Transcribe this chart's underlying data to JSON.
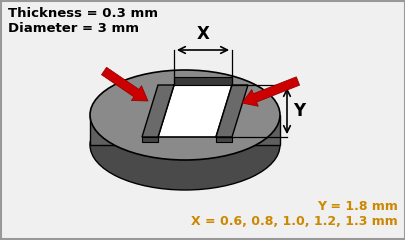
{
  "bg_color": "#f0f0f0",
  "border_color": "#999999",
  "title_text1": "Thickness = 0.3 mm",
  "title_text2": "Diameter = 3 mm",
  "dim_x_label": "X",
  "dim_y_label": "Y",
  "bottom_text1": "Y = 1.8 mm",
  "bottom_text2": "X = 0.6, 0.8, 1.0, 1.2, 1.3 mm",
  "text_color": "#cc8800",
  "top_label_color": "#000000",
  "arrow_color": "#cc0000",
  "dim_line_color": "#000000",
  "disc_top_color": "#8a8a8a",
  "disc_side_color": "#4a4a4a",
  "slot_wall_color": "#5a5a5a",
  "slot_inner_color": "#ffffff",
  "slot_back_color": "#3a3a3a",
  "figsize": [
    4.06,
    2.4
  ],
  "dpi": 100
}
